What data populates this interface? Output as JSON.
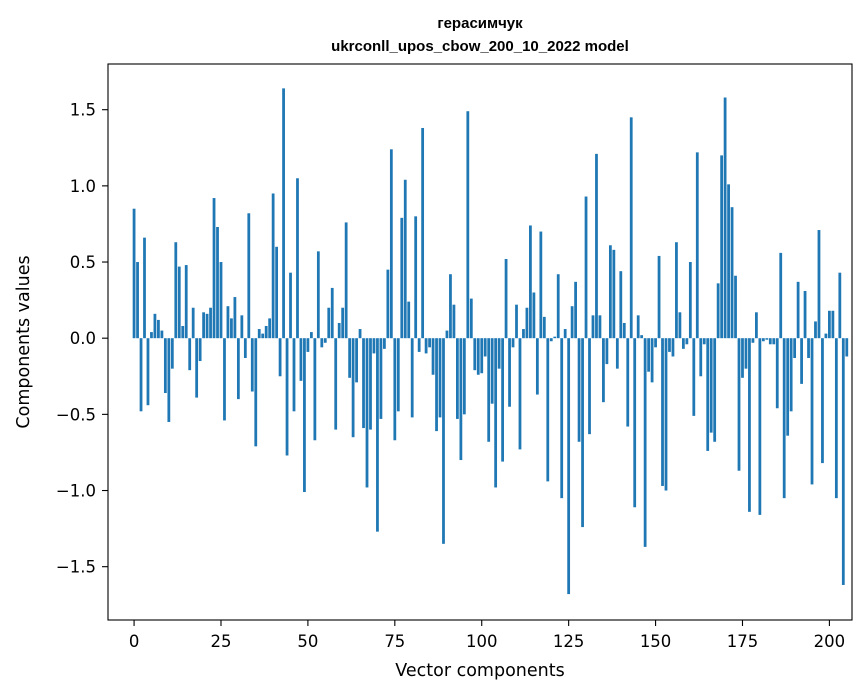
{
  "chart_data": {
    "type": "bar",
    "title": "герасимчук",
    "subtitle": "ukrconll_upos_cbow_200_10_2022 model",
    "xlabel": "Vector components",
    "ylabel": "Components values",
    "xlim": [
      -7.5,
      206.5
    ],
    "ylim": [
      -1.85,
      1.8
    ],
    "xticks": [
      0,
      25,
      50,
      75,
      100,
      125,
      150,
      175,
      200
    ],
    "yticks": [
      -1.5,
      -1.0,
      -0.5,
      0.0,
      0.5,
      1.0,
      1.5
    ],
    "ytick_labels": [
      "−1.5",
      "−1.0",
      "−0.5",
      "0.0",
      "0.5",
      "1.0",
      "1.5"
    ],
    "grid": false,
    "color": "#1f77b4",
    "values": [
      0.85,
      0.5,
      -0.48,
      0.66,
      -0.44,
      0.04,
      0.16,
      0.12,
      0.05,
      -0.36,
      -0.55,
      -0.2,
      0.63,
      0.47,
      0.08,
      0.48,
      -0.21,
      0.2,
      -0.39,
      -0.15,
      0.17,
      0.16,
      0.2,
      0.92,
      0.73,
      0.5,
      -0.54,
      0.21,
      0.13,
      0.27,
      -0.4,
      0.15,
      -0.13,
      0.82,
      -0.35,
      -0.71,
      0.06,
      0.03,
      0.08,
      0.13,
      0.95,
      0.6,
      -0.25,
      1.64,
      -0.77,
      0.43,
      -0.48,
      1.05,
      -0.28,
      -1.01,
      -0.09,
      0.04,
      -0.67,
      0.57,
      -0.06,
      -0.03,
      0.2,
      0.33,
      -0.6,
      0.1,
      0.2,
      0.76,
      -0.26,
      -0.65,
      -0.29,
      0.06,
      -0.59,
      -0.98,
      -0.6,
      -0.1,
      -1.27,
      -0.53,
      -0.07,
      0.45,
      1.24,
      -0.67,
      -0.48,
      0.79,
      1.04,
      0.24,
      -0.52,
      0.8,
      -0.09,
      1.38,
      -0.1,
      -0.06,
      -0.24,
      -0.61,
      -0.52,
      -1.35,
      0.05,
      0.42,
      0.22,
      -0.53,
      -0.8,
      -0.5,
      1.49,
      0.26,
      -0.21,
      -0.24,
      -0.23,
      -0.12,
      -0.68,
      -0.43,
      -0.98,
      -0.2,
      -0.81,
      0.52,
      -0.45,
      -0.06,
      0.22,
      -0.73,
      0.06,
      0.2,
      0.74,
      0.3,
      -0.37,
      0.7,
      0.14,
      -0.94,
      -0.02,
      0.01,
      0.42,
      -1.05,
      0.06,
      -1.68,
      0.21,
      0.37,
      -0.68,
      -1.24,
      0.93,
      -0.63,
      0.15,
      1.21,
      0.15,
      -0.42,
      -0.17,
      0.61,
      0.58,
      -0.2,
      0.44,
      0.1,
      -0.58,
      1.45,
      -1.11,
      0.15,
      0.02,
      -1.37,
      -0.22,
      -0.29,
      -0.06,
      0.54,
      -0.97,
      -1.0,
      -0.09,
      -0.12,
      0.63,
      0.17,
      -0.07,
      -0.04,
      0.5,
      -0.51,
      1.22,
      -0.25,
      -0.04,
      -0.74,
      -0.62,
      -0.68,
      0.36,
      1.2,
      1.58,
      1.01,
      0.86,
      0.41,
      -0.87,
      -0.26,
      -0.2,
      -1.14,
      -0.03,
      0.17,
      -1.16,
      -0.02,
      -0.01,
      -0.04,
      -0.04,
      -0.46,
      0.56,
      -1.05,
      -0.64,
      -0.48,
      -0.13,
      0.37,
      -0.3,
      0.31,
      -0.13,
      -0.96,
      0.11,
      0.71,
      -0.82,
      0.03,
      0.18,
      0.18,
      -1.05,
      0.43,
      -1.62,
      -0.12
    ]
  }
}
